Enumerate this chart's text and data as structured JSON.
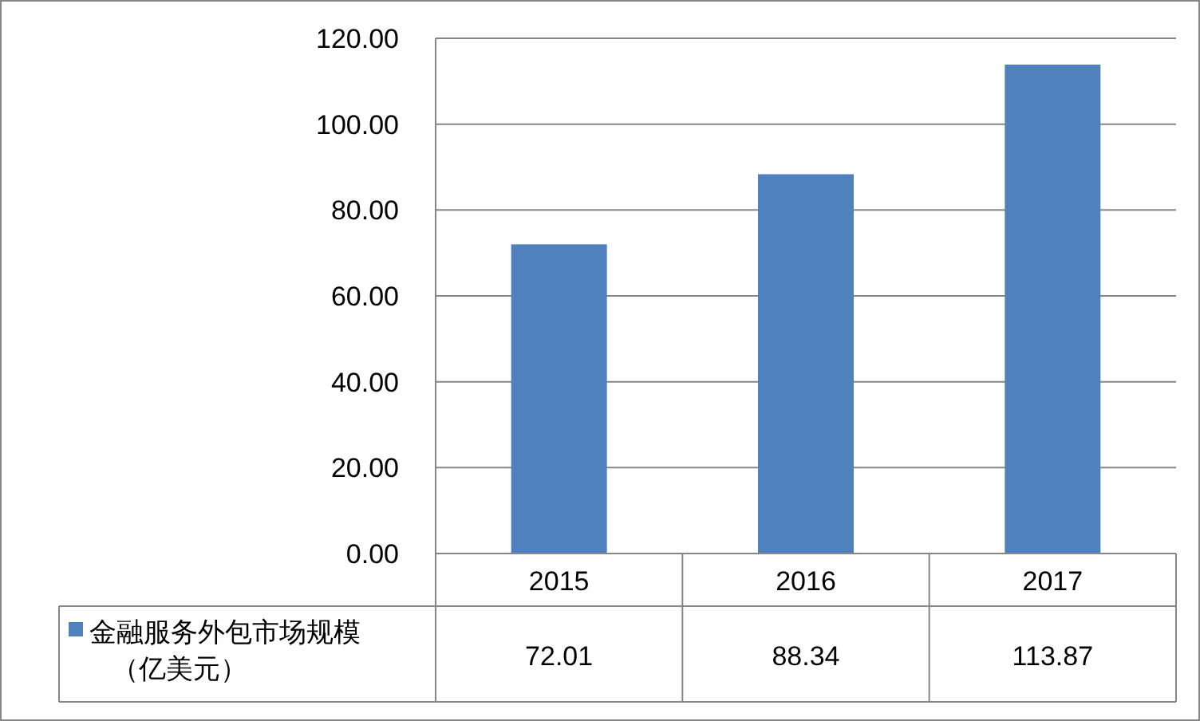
{
  "chart_data": {
    "type": "bar",
    "categories": [
      "2015",
      "2016",
      "2017"
    ],
    "series": [
      {
        "name": "金融服务外包市场规模（亿美元）",
        "color": "#4f81bd",
        "values": [
          72.01,
          88.34,
          113.87
        ]
      }
    ],
    "ylim": [
      0,
      120
    ],
    "yticks": [
      {
        "value": 0,
        "label": "0.00"
      },
      {
        "value": 20,
        "label": "20.00"
      },
      {
        "value": 40,
        "label": "40.00"
      },
      {
        "value": 60,
        "label": "60.00"
      },
      {
        "value": 80,
        "label": "80.00"
      },
      {
        "value": 100,
        "label": "100.00"
      },
      {
        "value": 120,
        "label": "120.00"
      }
    ],
    "grid": "y",
    "data_labels": true,
    "legend": "bottom left"
  }
}
